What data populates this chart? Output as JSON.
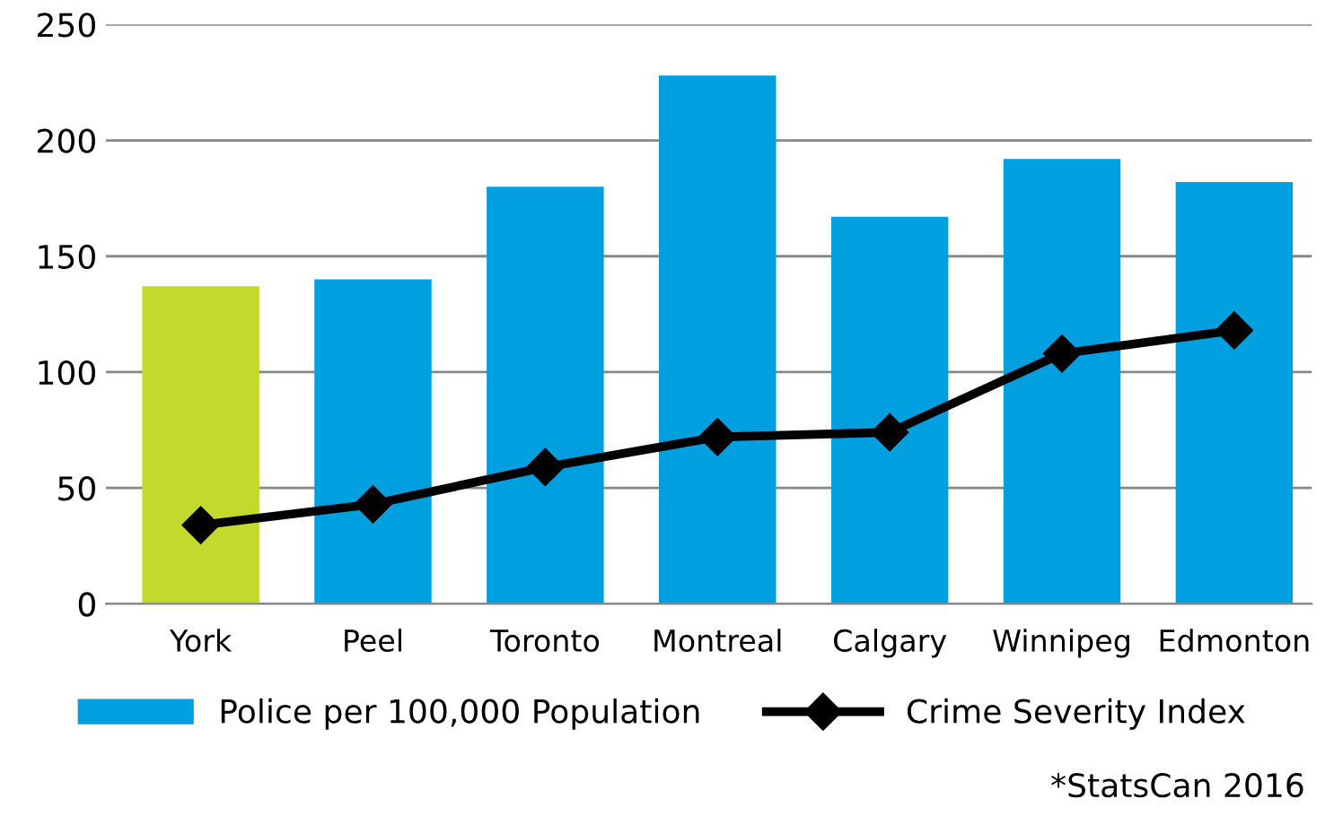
{
  "chart_data": {
    "type": "bar",
    "categories": [
      "York",
      "Peel",
      "Toronto",
      "Montreal",
      "Calgary",
      "Winnipeg",
      "Edmonton"
    ],
    "series": [
      {
        "name": "Police per 100,000 Population",
        "color": "#009fdf",
        "colors": [
          "#c3d92e",
          "#009fdf",
          "#009fdf",
          "#009fdf",
          "#009fdf",
          "#009fdf",
          "#009fdf"
        ],
        "values": [
          137,
          140,
          180,
          228,
          167,
          192,
          182
        ]
      },
      {
        "name": "Crime Severity Index",
        "type": "line",
        "color": "#000000",
        "marker": "diamond",
        "values": [
          34,
          43,
          59,
          72,
          74,
          108,
          118
        ]
      }
    ],
    "ylim": [
      0,
      250
    ],
    "yticks": [
      0,
      50,
      100,
      150,
      200,
      250
    ],
    "grid": "y",
    "legend": "bottom",
    "annotations": [
      "*StatsCan 2016"
    ]
  }
}
